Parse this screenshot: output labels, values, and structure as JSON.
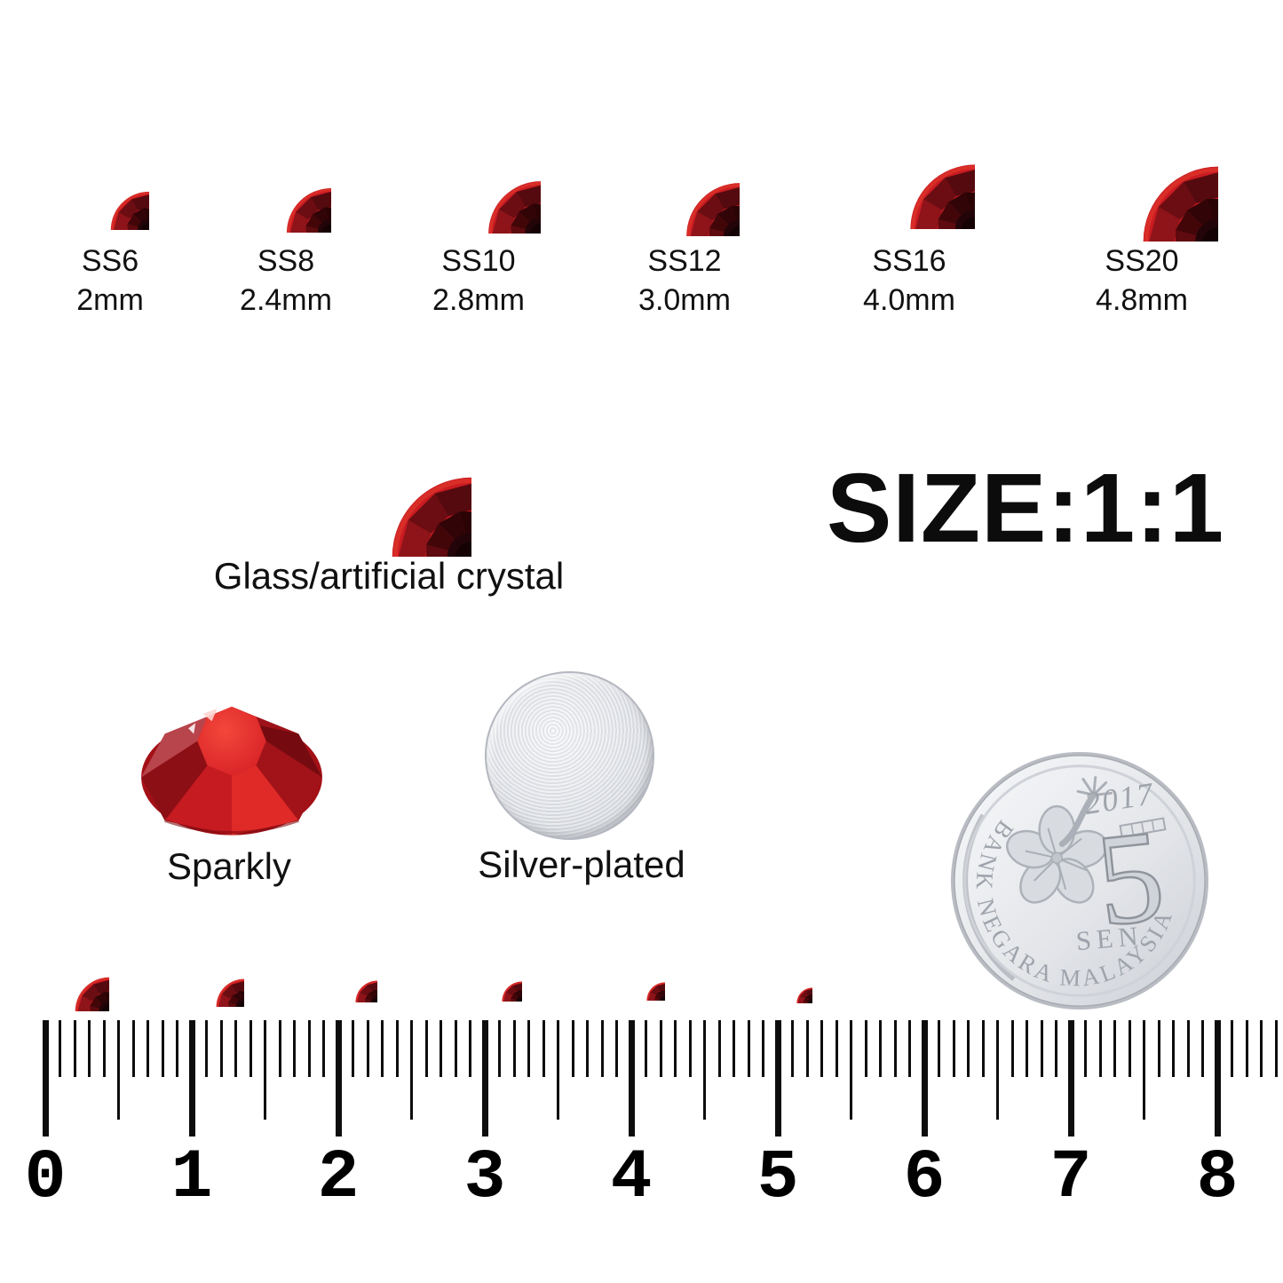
{
  "product": {
    "sizes": [
      {
        "name": "SS6",
        "diameter": "2mm"
      },
      {
        "name": "SS8",
        "diameter": "2.4mm"
      },
      {
        "name": "SS10",
        "diameter": "2.8mm"
      },
      {
        "name": "SS12",
        "diameter": "3.0mm"
      },
      {
        "name": "SS16",
        "diameter": "4.0mm"
      },
      {
        "name": "SS20",
        "diameter": "4.8mm"
      }
    ],
    "material_label": "Glass/artificial crystal",
    "scale_label": "SIZE:1:1",
    "sparkle_label": "Sparkly",
    "plating_label": "Silver-plated"
  },
  "coin": {
    "year": "2017",
    "denomination": "5",
    "unit": "SEN",
    "issuer": "BANK NEGARA MALAYSIA"
  },
  "ruler": {
    "tick_labels": [
      "0",
      "1",
      "2",
      "3",
      "4",
      "5",
      "6",
      "7",
      "8"
    ]
  },
  "colors": {
    "crystal_red": "#d01f26",
    "crystal_dark_center": "#1d0407",
    "silver_plate": "#dcdee3",
    "ruler_black": "#0d0d0d",
    "background": "#ffffff"
  }
}
